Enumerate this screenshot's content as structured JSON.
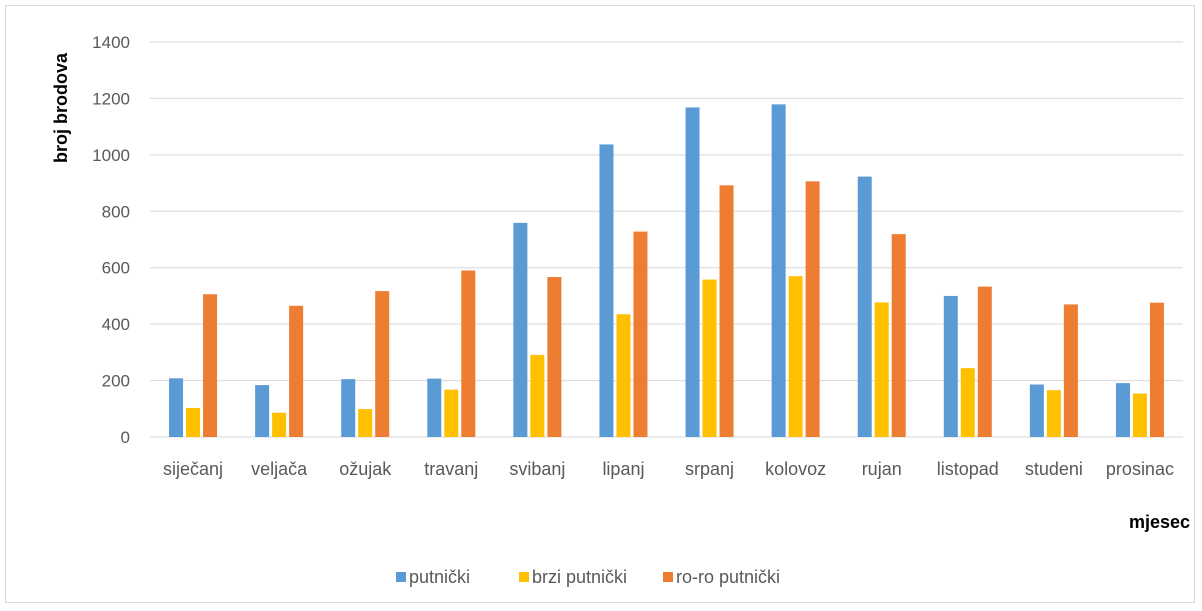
{
  "chart_data": {
    "type": "bar",
    "title": "",
    "xlabel": "mjesec",
    "ylabel": "broj brodova",
    "ylim": [
      0,
      1400
    ],
    "yticks": [
      0,
      200,
      400,
      600,
      800,
      1000,
      1200,
      1400
    ],
    "grid": true,
    "legend_position": "bottom",
    "categories": [
      "siječanj",
      "veljača",
      "ožujak",
      "travanj",
      "svibanj",
      "lipanj",
      "srpanj",
      "kolovoz",
      "rujan",
      "listopad",
      "studeni",
      "prosinac"
    ],
    "series": [
      {
        "name": "putnički",
        "color": "#5b9bd5",
        "values": [
          208,
          184,
          205,
          207,
          759,
          1037,
          1168,
          1179,
          923,
          500,
          186,
          191
        ]
      },
      {
        "name": "brzi putnički",
        "color": "#ffc000",
        "values": [
          103,
          86,
          99,
          168,
          291,
          435,
          558,
          570,
          477,
          244,
          166,
          154
        ]
      },
      {
        "name": "ro-ro putnički",
        "color": "#ed7d31",
        "values": [
          506,
          465,
          517,
          590,
          567,
          728,
          892,
          906,
          719,
          533,
          470,
          476
        ]
      }
    ]
  },
  "colors": {
    "grid": "#d9d9d9",
    "axis_text": "#595959",
    "label_text": "#000000"
  }
}
